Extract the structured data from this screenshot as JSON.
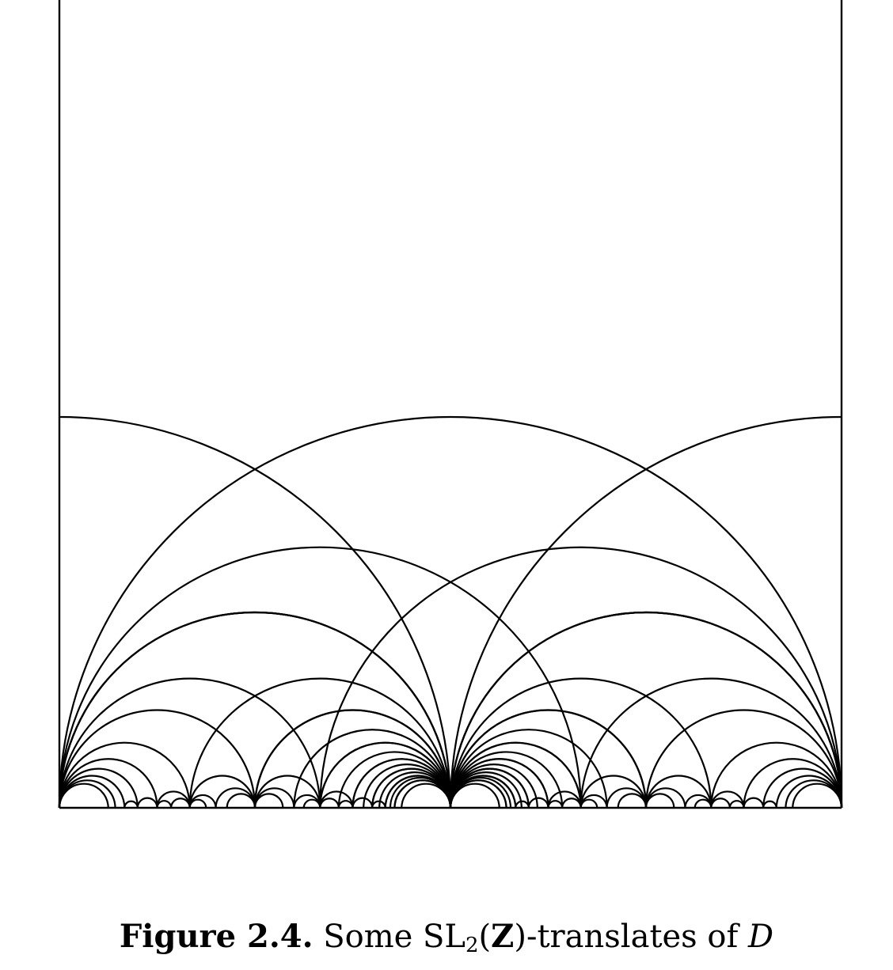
{
  "caption": {
    "label": "Figure 2.4.",
    "text_before": "Some SL",
    "subscript": "2",
    "paren_open": "(",
    "bold_symbol": "Z",
    "text_after": ")-translates of ",
    "script_symbol": "D"
  },
  "diagram": {
    "description_free": true,
    "x_range": [
      -1,
      1
    ],
    "max_denominator": 8,
    "stroke_color": "#000000"
  }
}
